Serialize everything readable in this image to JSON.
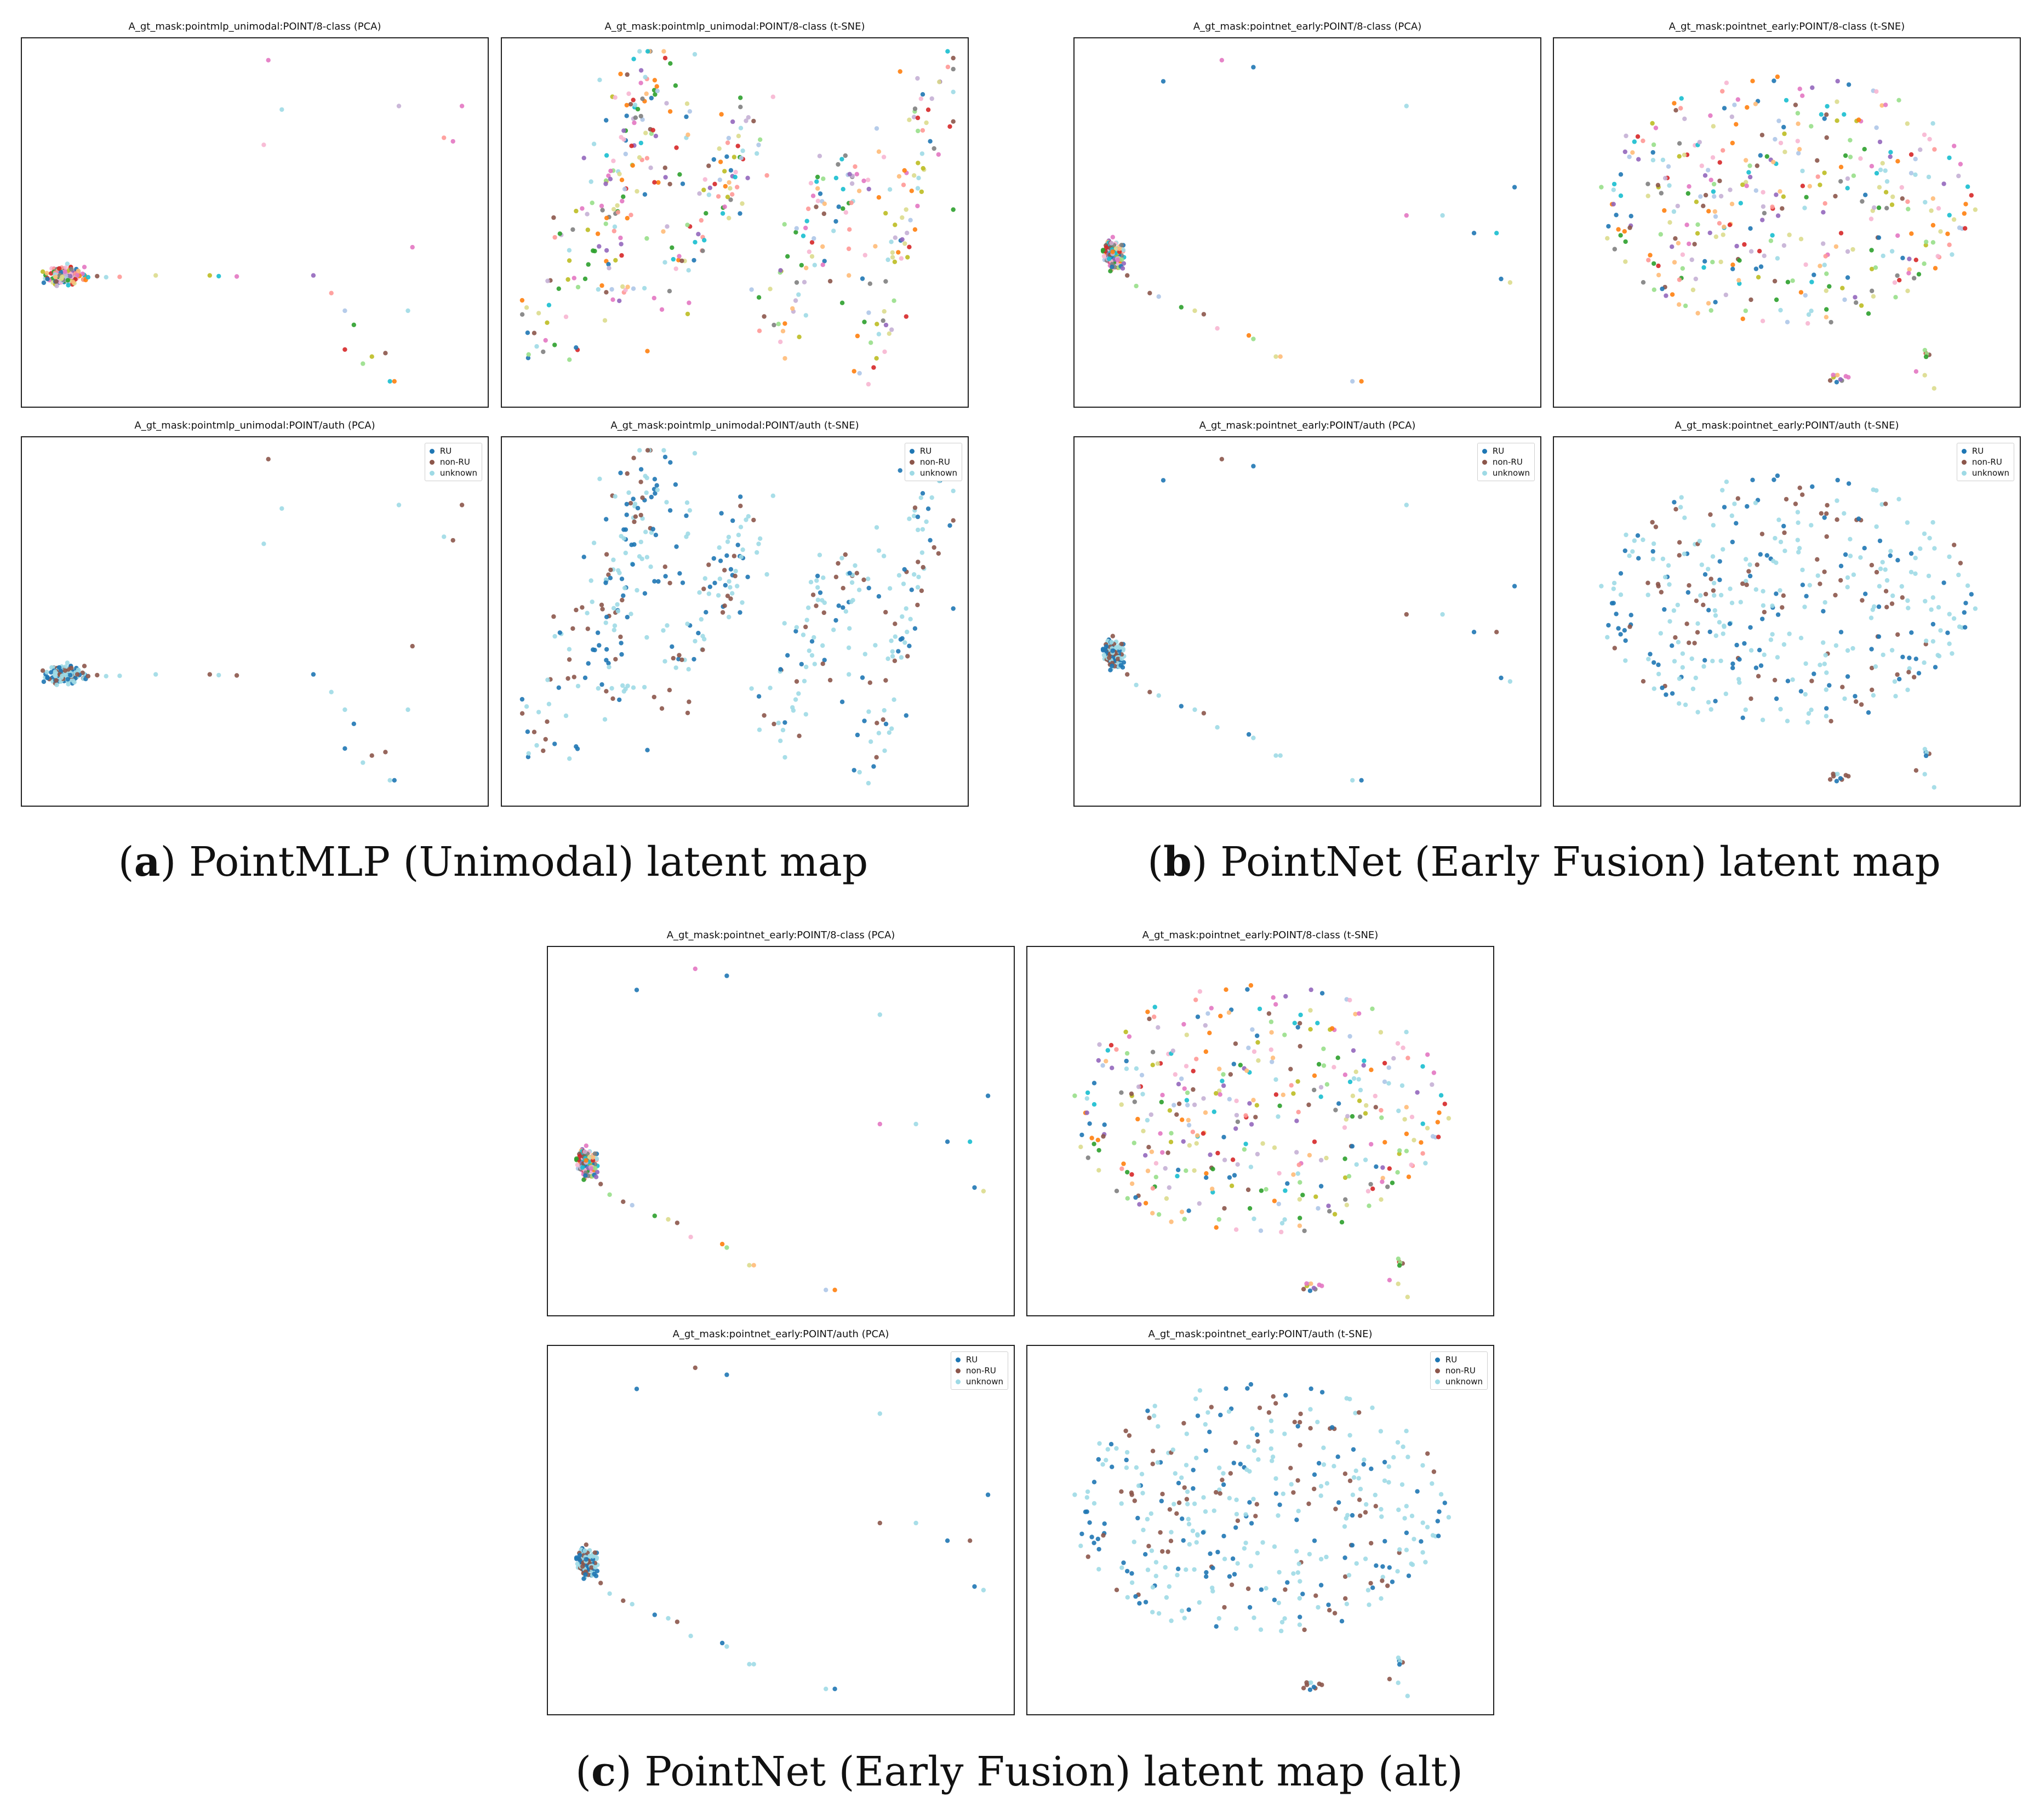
{
  "colors": {
    "class8": [
      "#1f77b4",
      "#ff7f0e",
      "#2ca02c",
      "#d62728",
      "#9467bd",
      "#8c564b",
      "#e377c2",
      "#7f7f7f",
      "#bcbd22",
      "#17becf",
      "#aec7e8",
      "#ffbb78",
      "#98df8a",
      "#ff9896",
      "#c5b0d5",
      "#f7b6d2",
      "#dbdb8d",
      "#9edae5"
    ],
    "auth": {
      "RU": "#1f77b4",
      "non-RU": "#8c564b",
      "unknown": "#9edae5"
    }
  },
  "legend_auth": [
    {
      "label": "RU",
      "color": "#1f77b4"
    },
    {
      "label": "non-RU",
      "color": "#8c564b"
    },
    {
      "label": "unknown",
      "color": "#9edae5"
    }
  ],
  "captions": {
    "a": {
      "letter": "a",
      "text": "PointMLP (Unimodal) latent map"
    },
    "b": {
      "letter": "b",
      "text": "PointNet (Early Fusion) latent map"
    },
    "c": {
      "letter": "c",
      "text": "PointNet (Early Fusion) latent map (alt)"
    }
  },
  "chart_data": [
    {
      "id": "a-8class-pca",
      "type": "scatter",
      "title": "A_gt_mask:pointmlp_unimodal:POINT/8-class (PCA)",
      "xlim": [
        0,
        100
      ],
      "ylim": [
        0,
        100
      ],
      "grid": false,
      "legend": "none",
      "palette": "class8",
      "clusters": [
        {
          "cx": 8,
          "cy": 35,
          "sx": 1.8,
          "sy": 1.2,
          "n": 220
        }
      ],
      "tail": [
        [
          13,
          34.5
        ],
        [
          15,
          34.8
        ],
        [
          17,
          34.5
        ],
        [
          20,
          34.6
        ],
        [
          28,
          35
        ],
        [
          40,
          35
        ],
        [
          42,
          34.8
        ],
        [
          46,
          34.7
        ],
        [
          63,
          35
        ],
        [
          67,
          30
        ],
        [
          70,
          25
        ],
        [
          70,
          14
        ],
        [
          72,
          21
        ],
        [
          74,
          10
        ],
        [
          76,
          12
        ],
        [
          79,
          13
        ],
        [
          80,
          5
        ],
        [
          81,
          5
        ],
        [
          84,
          25
        ],
        [
          85,
          43
        ],
        [
          52,
          72
        ],
        [
          53,
          96
        ],
        [
          56,
          82
        ],
        [
          82,
          83
        ],
        [
          92,
          74
        ],
        [
          94,
          73
        ],
        [
          96,
          83
        ]
      ],
      "seed": 11
    },
    {
      "id": "a-8class-tsne",
      "type": "scatter",
      "title": "A_gt_mask:pointmlp_unimodal:POINT/8-class (t-SNE)",
      "xlim": [
        0,
        100
      ],
      "ylim": [
        0,
        100
      ],
      "grid": false,
      "legend": "none",
      "palette": "class8",
      "arcs": [
        [
          5,
          12,
          40,
          85
        ],
        [
          22,
          30,
          30,
          95
        ],
        [
          36,
          30,
          55,
          72
        ],
        [
          58,
          20,
          82,
          65
        ],
        [
          80,
          10,
          98,
          92
        ]
      ],
      "n": 430,
      "seed": 23
    },
    {
      "id": "a-auth-pca",
      "type": "scatter",
      "title": "A_gt_mask:pointmlp_unimodal:POINT/auth (PCA)",
      "xlim": [
        0,
        100
      ],
      "ylim": [
        0,
        100
      ],
      "grid": false,
      "legend": "top-right",
      "palette": "auth",
      "clusters": [
        {
          "cx": 8,
          "cy": 35,
          "sx": 1.8,
          "sy": 1.2,
          "n": 220
        }
      ],
      "tail": [
        [
          13,
          34.5
        ],
        [
          15,
          34.8
        ],
        [
          17,
          34.5
        ],
        [
          20,
          34.6
        ],
        [
          28,
          35
        ],
        [
          40,
          35
        ],
        [
          42,
          34.8
        ],
        [
          46,
          34.7
        ],
        [
          63,
          35
        ],
        [
          67,
          30
        ],
        [
          70,
          25
        ],
        [
          70,
          14
        ],
        [
          72,
          21
        ],
        [
          74,
          10
        ],
        [
          76,
          12
        ],
        [
          79,
          13
        ],
        [
          80,
          5
        ],
        [
          81,
          5
        ],
        [
          84,
          25
        ],
        [
          85,
          43
        ],
        [
          52,
          72
        ],
        [
          53,
          96
        ],
        [
          56,
          82
        ],
        [
          82,
          83
        ],
        [
          92,
          74
        ],
        [
          94,
          73
        ],
        [
          96,
          83
        ]
      ],
      "seed": 11
    },
    {
      "id": "a-auth-tsne",
      "type": "scatter",
      "title": "A_gt_mask:pointmlp_unimodal:POINT/auth (t-SNE)",
      "xlim": [
        0,
        100
      ],
      "ylim": [
        0,
        100
      ],
      "grid": false,
      "legend": "top-right",
      "palette": "auth",
      "arcs": [
        [
          5,
          12,
          40,
          85
        ],
        [
          22,
          30,
          30,
          95
        ],
        [
          36,
          30,
          55,
          72
        ],
        [
          58,
          20,
          82,
          65
        ],
        [
          80,
          10,
          98,
          92
        ]
      ],
      "n": 430,
      "seed": 23
    },
    {
      "id": "b-8class-pca",
      "type": "scatter",
      "title": "A_gt_mask:pointnet_early:POINT/8-class (PCA)",
      "xlim": [
        0,
        100
      ],
      "ylim": [
        0,
        100
      ],
      "grid": false,
      "legend": "none",
      "palette": "class8",
      "clusters": [
        {
          "cx": 7,
          "cy": 41,
          "sx": 1.0,
          "sy": 2.0,
          "n": 140
        }
      ],
      "tail": [
        [
          9,
          37
        ],
        [
          10,
          35
        ],
        [
          12,
          32
        ],
        [
          15,
          30
        ],
        [
          17,
          29
        ],
        [
          22,
          26
        ],
        [
          25,
          25
        ],
        [
          27,
          24
        ],
        [
          30,
          20
        ],
        [
          37,
          18
        ],
        [
          38,
          17
        ],
        [
          43,
          12
        ],
        [
          44,
          12
        ],
        [
          60,
          5
        ],
        [
          62,
          5
        ],
        [
          18,
          90
        ],
        [
          31,
          96
        ],
        [
          38,
          94
        ],
        [
          72,
          83
        ],
        [
          72,
          52
        ],
        [
          80,
          52
        ],
        [
          87,
          47
        ],
        [
          92,
          47
        ],
        [
          93,
          34
        ],
        [
          95,
          33
        ],
        [
          96,
          60
        ]
      ],
      "seed": 37
    },
    {
      "id": "b-8class-tsne",
      "type": "scatter",
      "title": "A_gt_mask:pointnet_early:POINT/8-class (t-SNE)",
      "xlim": [
        0,
        100
      ],
      "ylim": [
        0,
        100
      ],
      "grid": false,
      "legend": "none",
      "palette": "class8",
      "blob": {
        "cx": 50,
        "cy": 56,
        "rx": 42,
        "ry": 36,
        "n": 380
      },
      "clusters": [
        {
          "cx": 61,
          "cy": 6,
          "sx": 1.6,
          "sy": 0.8,
          "n": 10
        },
        {
          "cx": 81,
          "cy": 10,
          "sx": 1.5,
          "sy": 3,
          "n": 8
        }
      ],
      "seed": 41
    },
    {
      "id": "b-auth-pca",
      "type": "scatter",
      "title": "A_gt_mask:pointnet_early:POINT/auth (PCA)",
      "xlim": [
        0,
        100
      ],
      "ylim": [
        0,
        100
      ],
      "grid": false,
      "legend": "top-right",
      "palette": "auth",
      "clusters": [
        {
          "cx": 7,
          "cy": 41,
          "sx": 1.0,
          "sy": 2.0,
          "n": 140
        }
      ],
      "tail": [
        [
          9,
          37
        ],
        [
          10,
          35
        ],
        [
          12,
          32
        ],
        [
          15,
          30
        ],
        [
          17,
          29
        ],
        [
          22,
          26
        ],
        [
          25,
          25
        ],
        [
          27,
          24
        ],
        [
          30,
          20
        ],
        [
          37,
          18
        ],
        [
          38,
          17
        ],
        [
          43,
          12
        ],
        [
          44,
          12
        ],
        [
          60,
          5
        ],
        [
          62,
          5
        ],
        [
          18,
          90
        ],
        [
          31,
          96
        ],
        [
          38,
          94
        ],
        [
          72,
          83
        ],
        [
          72,
          52
        ],
        [
          80,
          52
        ],
        [
          87,
          47
        ],
        [
          92,
          47
        ],
        [
          93,
          34
        ],
        [
          95,
          33
        ],
        [
          96,
          60
        ]
      ],
      "seed": 37
    },
    {
      "id": "b-auth-tsne",
      "type": "scatter",
      "title": "A_gt_mask:pointnet_early:POINT/auth (t-SNE)",
      "xlim": [
        0,
        100
      ],
      "ylim": [
        0,
        100
      ],
      "grid": false,
      "legend": "top-right",
      "palette": "auth",
      "blob": {
        "cx": 50,
        "cy": 56,
        "rx": 42,
        "ry": 36,
        "n": 380
      },
      "clusters": [
        {
          "cx": 61,
          "cy": 6,
          "sx": 1.6,
          "sy": 0.8,
          "n": 10
        },
        {
          "cx": 81,
          "cy": 10,
          "sx": 1.5,
          "sy": 3,
          "n": 8
        }
      ],
      "seed": 41
    },
    {
      "id": "c-8class-pca",
      "type": "scatter",
      "title": "A_gt_mask:pointnet_early:POINT/8-class (PCA)",
      "xlim": [
        0,
        100
      ],
      "ylim": [
        0,
        100
      ],
      "grid": false,
      "legend": "none",
      "palette": "class8",
      "clusters": [
        {
          "cx": 7,
          "cy": 41,
          "sx": 1.0,
          "sy": 2.0,
          "n": 140
        }
      ],
      "tail": [
        [
          9,
          37
        ],
        [
          10,
          35
        ],
        [
          12,
          32
        ],
        [
          15,
          30
        ],
        [
          17,
          29
        ],
        [
          22,
          26
        ],
        [
          25,
          25
        ],
        [
          27,
          24
        ],
        [
          30,
          20
        ],
        [
          37,
          18
        ],
        [
          38,
          17
        ],
        [
          43,
          12
        ],
        [
          44,
          12
        ],
        [
          60,
          5
        ],
        [
          62,
          5
        ],
        [
          18,
          90
        ],
        [
          31,
          96
        ],
        [
          38,
          94
        ],
        [
          72,
          83
        ],
        [
          72,
          52
        ],
        [
          80,
          52
        ],
        [
          87,
          47
        ],
        [
          92,
          47
        ],
        [
          93,
          34
        ],
        [
          95,
          33
        ],
        [
          96,
          60
        ]
      ],
      "seed": 37
    },
    {
      "id": "c-8class-tsne",
      "type": "scatter",
      "title": "A_gt_mask:pointnet_early:POINT/8-class (t-SNE)",
      "xlim": [
        0,
        100
      ],
      "ylim": [
        0,
        100
      ],
      "grid": false,
      "legend": "none",
      "palette": "class8",
      "blob": {
        "cx": 50,
        "cy": 56,
        "rx": 42,
        "ry": 36,
        "n": 380
      },
      "clusters": [
        {
          "cx": 61,
          "cy": 6,
          "sx": 1.6,
          "sy": 0.8,
          "n": 10
        },
        {
          "cx": 81,
          "cy": 10,
          "sx": 1.5,
          "sy": 3,
          "n": 8
        }
      ],
      "seed": 41
    },
    {
      "id": "c-auth-pca",
      "type": "scatter",
      "title": "A_gt_mask:pointnet_early:POINT/auth (PCA)",
      "xlim": [
        0,
        100
      ],
      "ylim": [
        0,
        100
      ],
      "grid": false,
      "legend": "top-right",
      "palette": "auth",
      "clusters": [
        {
          "cx": 7,
          "cy": 41,
          "sx": 1.0,
          "sy": 2.0,
          "n": 140
        }
      ],
      "tail": [
        [
          9,
          37
        ],
        [
          10,
          35
        ],
        [
          12,
          32
        ],
        [
          15,
          30
        ],
        [
          17,
          29
        ],
        [
          22,
          26
        ],
        [
          25,
          25
        ],
        [
          27,
          24
        ],
        [
          30,
          20
        ],
        [
          37,
          18
        ],
        [
          38,
          17
        ],
        [
          43,
          12
        ],
        [
          44,
          12
        ],
        [
          60,
          5
        ],
        [
          62,
          5
        ],
        [
          18,
          90
        ],
        [
          31,
          96
        ],
        [
          38,
          94
        ],
        [
          72,
          83
        ],
        [
          72,
          52
        ],
        [
          80,
          52
        ],
        [
          87,
          47
        ],
        [
          92,
          47
        ],
        [
          93,
          34
        ],
        [
          95,
          33
        ],
        [
          96,
          60
        ]
      ],
      "seed": 37
    },
    {
      "id": "c-auth-tsne",
      "type": "scatter",
      "title": "A_gt_mask:pointnet_early:POINT/auth (t-SNE)",
      "xlim": [
        0,
        100
      ],
      "ylim": [
        0,
        100
      ],
      "grid": false,
      "legend": "top-right",
      "palette": "auth",
      "blob": {
        "cx": 50,
        "cy": 56,
        "rx": 42,
        "ry": 36,
        "n": 380
      },
      "clusters": [
        {
          "cx": 61,
          "cy": 6,
          "sx": 1.6,
          "sy": 0.8,
          "n": 10
        },
        {
          "cx": 81,
          "cy": 10,
          "sx": 1.5,
          "sy": 3,
          "n": 8
        }
      ],
      "seed": 41
    }
  ]
}
